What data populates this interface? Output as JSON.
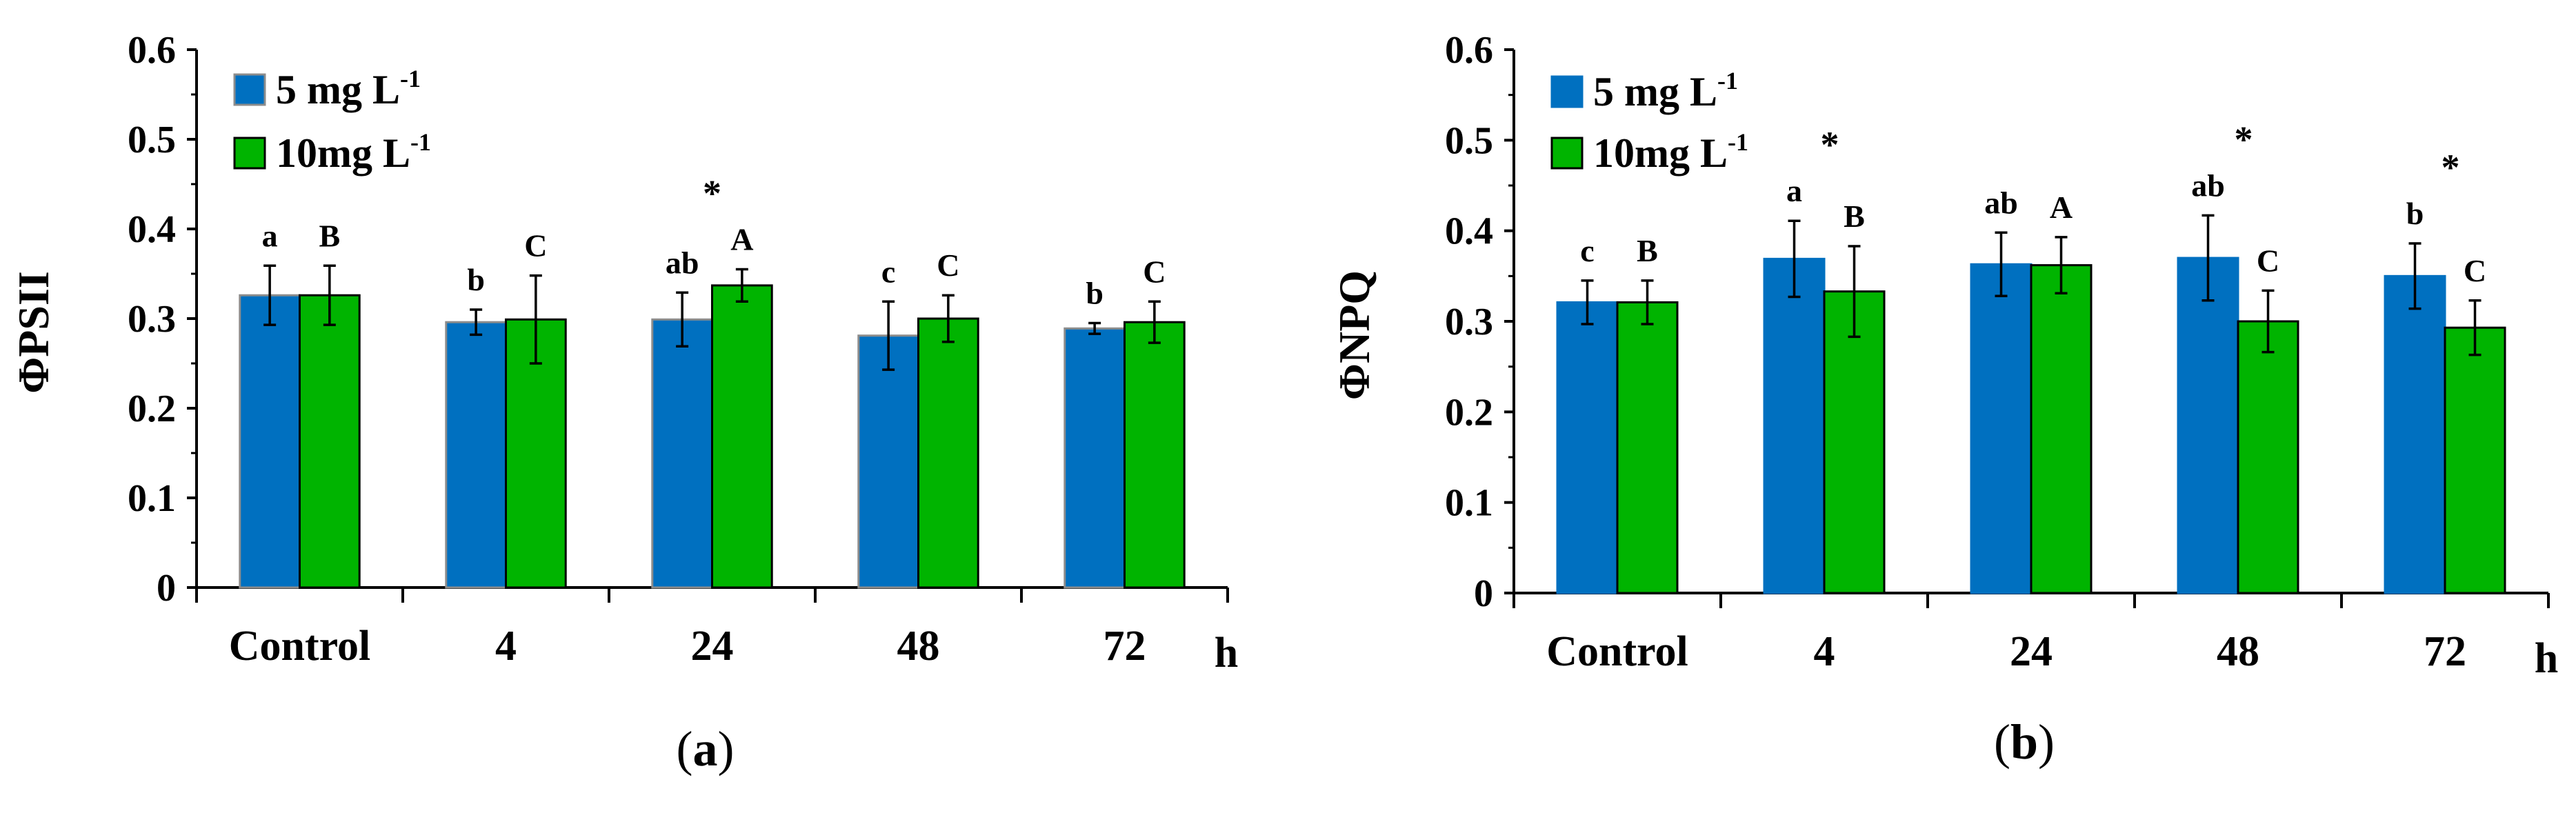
{
  "chart_data": [
    {
      "type": "bar",
      "panel_label": "a",
      "ylabel": "ΦPSII",
      "xunit": "h",
      "ylim": [
        0,
        0.6
      ],
      "yticks": [
        "0",
        "0.1",
        "0.2",
        "0.3",
        "0.4",
        "0.5",
        "0.6"
      ],
      "categories": [
        "Control",
        "4",
        "24",
        "48",
        "72"
      ],
      "legend": {
        "position": "top-left"
      },
      "series": [
        {
          "name_main": "5 mg L",
          "name_sup": "-1",
          "color": "#0070C0",
          "edge": "#8C8C8C",
          "values": [
            0.326,
            0.296,
            0.299,
            0.281,
            0.289
          ],
          "errors": [
            0.033,
            0.014,
            0.03,
            0.038,
            0.006
          ],
          "letters": [
            "a",
            "b",
            "ab",
            "c",
            "b"
          ]
        },
        {
          "name_main": "10mg L",
          "name_sup": "-1",
          "color": "#00B400",
          "edge": "#000000",
          "values": [
            0.326,
            0.299,
            0.337,
            0.3,
            0.296
          ],
          "errors": [
            0.033,
            0.049,
            0.018,
            0.026,
            0.023
          ],
          "letters": [
            "B",
            "C",
            "A",
            "C",
            "C"
          ]
        }
      ],
      "significance": [
        "",
        "",
        "*",
        "",
        ""
      ]
    },
    {
      "type": "bar",
      "panel_label": "b",
      "ylabel": "ΦNPQ",
      "xunit": "h",
      "ylim": [
        0,
        0.6
      ],
      "yticks": [
        "0",
        "0.1",
        "0.2",
        "0.3",
        "0.4",
        "0.5",
        "0.6"
      ],
      "categories": [
        "Control",
        "4",
        "24",
        "48",
        "72"
      ],
      "legend": {
        "position": "top-left"
      },
      "series": [
        {
          "name_main": "5 mg L",
          "name_sup": "-1",
          "color": "#0070C0",
          "edge": "#0070C0",
          "values": [
            0.321,
            0.369,
            0.363,
            0.37,
            0.35
          ],
          "errors": [
            0.024,
            0.042,
            0.035,
            0.047,
            0.036
          ],
          "letters": [
            "c",
            "a",
            "ab",
            "ab",
            "b"
          ]
        },
        {
          "name_main": "10mg L",
          "name_sup": "-1",
          "color": "#00B400",
          "edge": "#000000",
          "values": [
            0.321,
            0.333,
            0.362,
            0.3,
            0.293
          ],
          "errors": [
            0.024,
            0.05,
            0.031,
            0.034,
            0.03
          ],
          "letters": [
            "B",
            "B",
            "A",
            "C",
            "C"
          ]
        }
      ],
      "significance": [
        "",
        "*",
        "",
        "*",
        "*"
      ]
    }
  ]
}
